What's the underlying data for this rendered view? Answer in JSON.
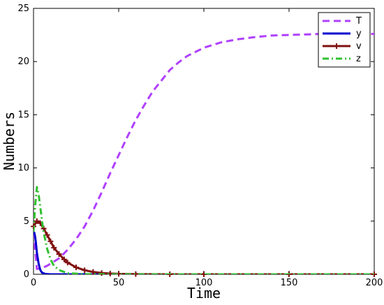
{
  "chart_data": {
    "type": "line",
    "title": "",
    "xlabel": "Time",
    "ylabel": "Numbers",
    "xlim": [
      0,
      200
    ],
    "ylim": [
      0,
      25
    ],
    "xticks": [
      0,
      50,
      100,
      150,
      200
    ],
    "yticks": [
      0,
      5,
      10,
      15,
      20,
      25
    ],
    "grid": false,
    "legend_position": "top-right",
    "series": [
      {
        "name": "T",
        "color": "#b040ff",
        "style": "dashed",
        "x": [
          0,
          2,
          5,
          8,
          10,
          15,
          20,
          25,
          30,
          35,
          40,
          45,
          50,
          55,
          60,
          65,
          70,
          75,
          80,
          85,
          90,
          95,
          100,
          110,
          120,
          130,
          140,
          150,
          160,
          170,
          180,
          190,
          200
        ],
        "y": [
          4.0,
          0.5,
          0.6,
          0.8,
          1.0,
          1.5,
          2.3,
          3.3,
          4.5,
          6.0,
          7.7,
          9.5,
          11.2,
          12.9,
          14.5,
          15.9,
          17.2,
          18.2,
          19.2,
          19.9,
          20.5,
          20.9,
          21.3,
          21.8,
          22.1,
          22.3,
          22.45,
          22.5,
          22.55,
          22.6,
          22.6,
          22.6,
          22.6
        ]
      },
      {
        "name": "y",
        "color": "#0000cc",
        "style": "solid",
        "x": [
          0,
          0.5,
          1,
          1.5,
          2,
          3,
          4,
          5,
          7,
          10,
          20,
          50,
          100,
          150,
          200
        ],
        "y": [
          4.0,
          3.9,
          3.5,
          2.8,
          2.0,
          1.0,
          0.4,
          0.15,
          0.03,
          0.0,
          0.0,
          0.0,
          0.0,
          0.0,
          0.0
        ]
      },
      {
        "name": "v",
        "color": "#801010",
        "style": "solid-plus",
        "x": [
          0,
          2,
          4,
          6,
          8,
          10,
          12,
          15,
          18,
          20,
          25,
          30,
          35,
          40,
          45,
          50,
          60,
          80,
          100,
          150,
          200
        ],
        "y": [
          4.5,
          5.0,
          4.8,
          4.3,
          3.7,
          3.1,
          2.5,
          1.9,
          1.4,
          1.1,
          0.65,
          0.38,
          0.22,
          0.12,
          0.07,
          0.04,
          0.02,
          0.0,
          0.0,
          0.0,
          0.0
        ]
      },
      {
        "name": "z",
        "color": "#30c030",
        "style": "dashdot",
        "x": [
          0,
          1,
          2,
          3,
          4,
          5,
          6,
          8,
          10,
          12,
          15,
          20,
          30,
          50,
          100,
          150,
          200
        ],
        "y": [
          4.0,
          6.5,
          8.2,
          7.5,
          6.3,
          5.0,
          3.9,
          2.4,
          1.4,
          0.8,
          0.4,
          0.1,
          0.02,
          0.0,
          0.0,
          0.0,
          0.0
        ]
      }
    ]
  }
}
